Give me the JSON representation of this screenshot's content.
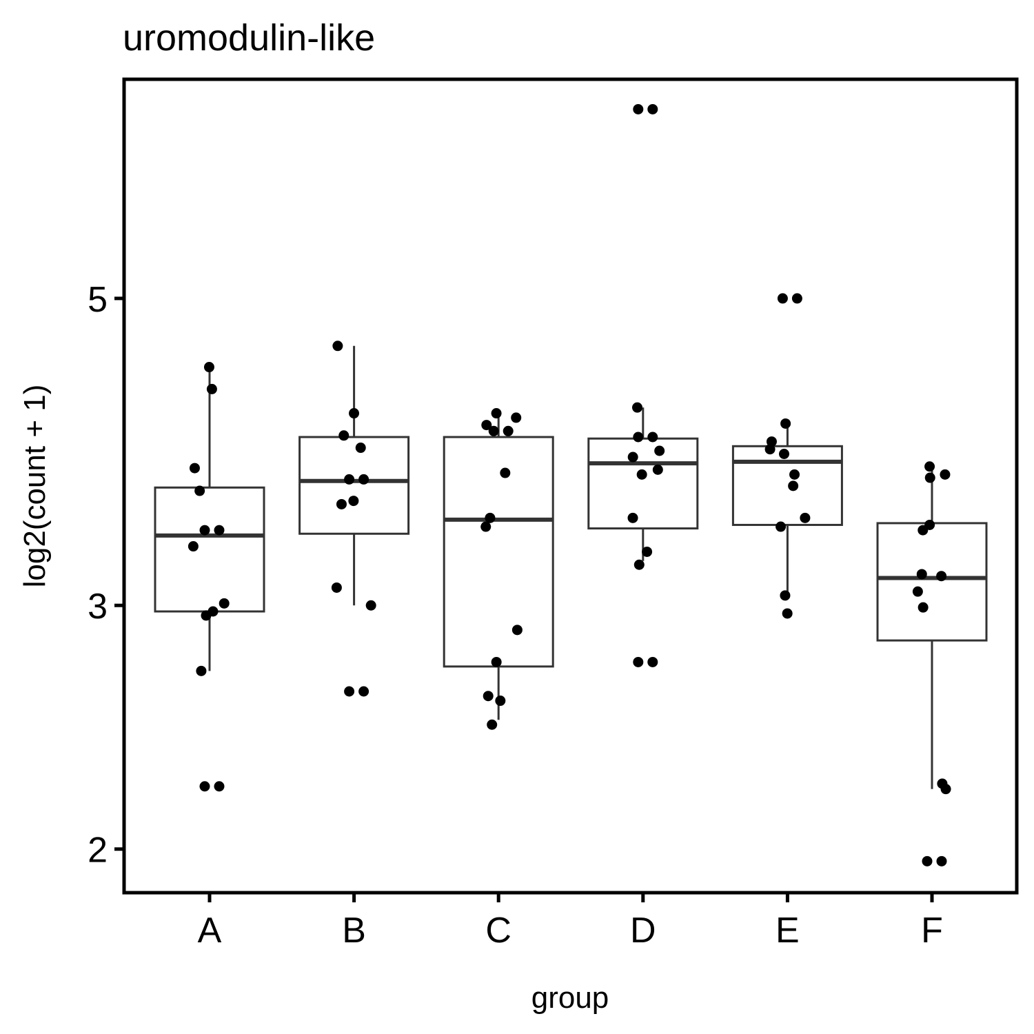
{
  "chart_data": {
    "type": "boxplot",
    "title": "uromodulin-like",
    "xlabel": "group",
    "ylabel": "log2(count + 1)",
    "y_scale": "log",
    "ylim": [
      1.86,
      7.2
    ],
    "yticks": [
      2,
      3,
      5
    ],
    "ytick_labels": [
      "2",
      "3",
      "5"
    ],
    "grid": false,
    "legend": "none",
    "categories": [
      "A",
      "B",
      "C",
      "D",
      "E",
      "F"
    ],
    "boxes": [
      {
        "group": "A",
        "whisker_low": 2.69,
        "q1": 2.97,
        "median": 3.37,
        "q3": 3.65,
        "whisker_high": 4.46
      },
      {
        "group": "B",
        "whisker_low": 3.0,
        "q1": 3.38,
        "median": 3.69,
        "q3": 3.97,
        "whisker_high": 4.62
      },
      {
        "group": "C",
        "whisker_low": 2.48,
        "q1": 2.71,
        "median": 3.46,
        "q3": 3.97,
        "whisker_high": 4.13
      },
      {
        "group": "D",
        "whisker_low": 3.23,
        "q1": 3.41,
        "median": 3.8,
        "q3": 3.96,
        "whisker_high": 4.17
      },
      {
        "group": "E",
        "whisker_low": 3.05,
        "q1": 3.43,
        "median": 3.81,
        "q3": 3.91,
        "whisker_high": 4.08
      },
      {
        "group": "F",
        "whisker_low": 2.21,
        "q1": 2.83,
        "median": 3.14,
        "q3": 3.44,
        "whisker_high": 3.78
      }
    ],
    "points": [
      {
        "group": "A",
        "values": [
          4.46,
          4.3,
          3.77,
          3.63,
          3.4,
          3.4,
          3.31,
          3.01,
          2.97,
          2.95,
          2.69,
          2.22,
          2.22
        ]
      },
      {
        "group": "B",
        "values": [
          4.62,
          4.13,
          3.98,
          3.9,
          3.7,
          3.7,
          3.57,
          3.55,
          3.09,
          3.0,
          2.6,
          2.6
        ]
      },
      {
        "group": "C",
        "values": [
          4.13,
          4.1,
          4.05,
          4.01,
          4.01,
          3.74,
          3.47,
          3.42,
          2.88,
          2.73,
          2.58,
          2.56,
          2.46
        ]
      },
      {
        "group": "D",
        "values": [
          6.85,
          6.85,
          4.17,
          3.97,
          3.97,
          3.88,
          3.84,
          3.76,
          3.73,
          3.47,
          3.28,
          3.21,
          2.73,
          2.73
        ]
      },
      {
        "group": "E",
        "values": [
          5.0,
          5.0,
          4.06,
          3.94,
          3.89,
          3.86,
          3.73,
          3.66,
          3.47,
          3.42,
          3.05,
          2.96
        ]
      },
      {
        "group": "F",
        "values": [
          3.78,
          3.73,
          3.71,
          3.43,
          3.4,
          3.16,
          3.15,
          3.07,
          2.99,
          2.23,
          2.21,
          1.96,
          1.96
        ]
      }
    ]
  }
}
